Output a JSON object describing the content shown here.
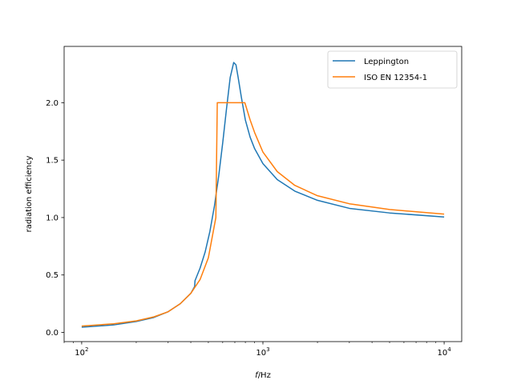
{
  "chart_data": {
    "type": "line",
    "title": "",
    "xlabel": "f/Hz",
    "ylabel": "radiation efficiency",
    "xscale": "log",
    "xlim": [
      80,
      12500
    ],
    "ylim": [
      -0.08,
      2.49
    ],
    "grid": false,
    "legend_position": "top-right",
    "x_ticks": [
      {
        "value": 100,
        "base": "10",
        "exp": "2"
      },
      {
        "value": 1000,
        "base": "10",
        "exp": "3"
      },
      {
        "value": 10000,
        "base": "10",
        "exp": "4"
      }
    ],
    "y_ticks": [
      {
        "value": 0.0,
        "label": "0.0"
      },
      {
        "value": 0.5,
        "label": "0.5"
      },
      {
        "value": 1.0,
        "label": "1.0"
      },
      {
        "value": 1.5,
        "label": "1.5"
      },
      {
        "value": 2.0,
        "label": "2.0"
      }
    ],
    "series": [
      {
        "name": "Leppington",
        "color": "#1f77b4",
        "points": [
          [
            100,
            0.045
          ],
          [
            150,
            0.065
          ],
          [
            200,
            0.095
          ],
          [
            250,
            0.13
          ],
          [
            300,
            0.18
          ],
          [
            350,
            0.25
          ],
          [
            400,
            0.34
          ],
          [
            420,
            0.4
          ],
          [
            422,
            0.45
          ],
          [
            450,
            0.56
          ],
          [
            480,
            0.7
          ],
          [
            510,
            0.88
          ],
          [
            540,
            1.1
          ],
          [
            570,
            1.36
          ],
          [
            600,
            1.65
          ],
          [
            630,
            1.95
          ],
          [
            660,
            2.22
          ],
          [
            690,
            2.35
          ],
          [
            710,
            2.33
          ],
          [
            730,
            2.22
          ],
          [
            760,
            2.05
          ],
          [
            800,
            1.85
          ],
          [
            850,
            1.7
          ],
          [
            900,
            1.6
          ],
          [
            1000,
            1.47
          ],
          [
            1200,
            1.33
          ],
          [
            1500,
            1.23
          ],
          [
            2000,
            1.15
          ],
          [
            3000,
            1.08
          ],
          [
            5000,
            1.04
          ],
          [
            10000,
            1.005
          ]
        ]
      },
      {
        "name": "ISO EN 12354-1",
        "color": "#ff7f0e",
        "points": [
          [
            100,
            0.055
          ],
          [
            150,
            0.075
          ],
          [
            200,
            0.1
          ],
          [
            250,
            0.135
          ],
          [
            300,
            0.18
          ],
          [
            350,
            0.25
          ],
          [
            400,
            0.34
          ],
          [
            450,
            0.46
          ],
          [
            500,
            0.65
          ],
          [
            550,
            1.0
          ],
          [
            560,
            2.0
          ],
          [
            795,
            2.0
          ],
          [
            850,
            1.85
          ],
          [
            900,
            1.74
          ],
          [
            1000,
            1.57
          ],
          [
            1200,
            1.4
          ],
          [
            1500,
            1.28
          ],
          [
            2000,
            1.19
          ],
          [
            3000,
            1.12
          ],
          [
            5000,
            1.07
          ],
          [
            10000,
            1.03
          ]
        ]
      }
    ]
  }
}
